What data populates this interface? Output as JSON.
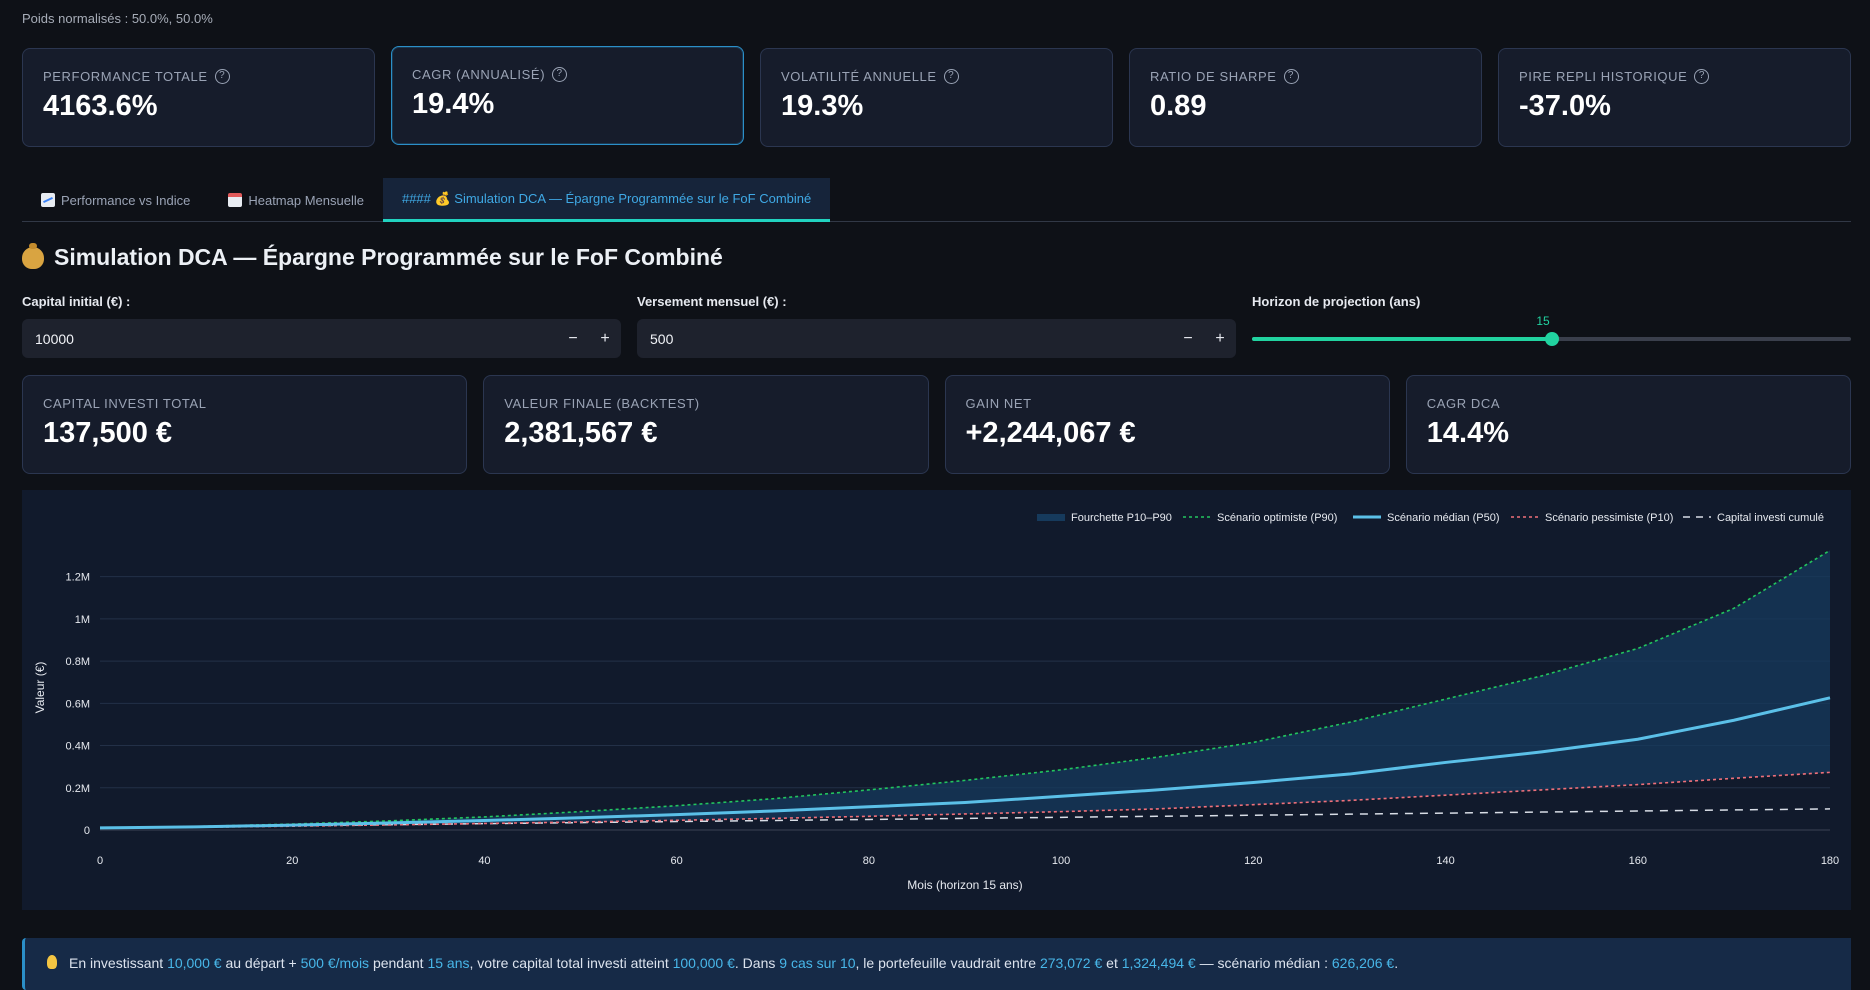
{
  "top_note": "Poids normalisés : 50.0%, 50.0%",
  "metrics": [
    {
      "label": "PERFORMANCE TOTALE",
      "value": "4163.6%"
    },
    {
      "label": "CAGR (ANNUALISÉ)",
      "value": "19.4%"
    },
    {
      "label": "VOLATILITÉ ANNUELLE",
      "value": "19.3%"
    },
    {
      "label": "RATIO DE SHARPE",
      "value": "0.89"
    },
    {
      "label": "PIRE REPLI HISTORIQUE",
      "value": "-37.0%"
    }
  ],
  "tabs": [
    {
      "label": "Performance vs Indice",
      "icon": "chart-increasing-icon"
    },
    {
      "label": "Heatmap Mensuelle",
      "icon": "calendar-icon"
    },
    {
      "label": "#### 💰 Simulation DCA — Épargne Programmée sur le FoF Combiné",
      "icon": "money-bag-icon"
    }
  ],
  "section": {
    "title": "Simulation DCA — Épargne Programmée sur le FoF Combiné"
  },
  "inputs": {
    "capital_label": "Capital initial (€) :",
    "capital_value": "10000",
    "monthly_label": "Versement mensuel (€) :",
    "monthly_value": "500",
    "minus": "−",
    "plus": "+"
  },
  "slider": {
    "label": "Horizon de projection (ans)",
    "value": "15",
    "min": 0,
    "max": 30
  },
  "dca_metrics": [
    {
      "label": "CAPITAL INVESTI TOTAL",
      "value": "137,500 €"
    },
    {
      "label": "VALEUR FINALE (BACKTEST)",
      "value": "2,381,567 €"
    },
    {
      "label": "GAIN NET",
      "value": "+2,244,067 €"
    },
    {
      "label": "CAGR DCA",
      "value": "14.4%"
    }
  ],
  "colors": {
    "accent": "#21d3a0",
    "p90": "#22c55e",
    "p50": "#5bc0e8",
    "p10": "#f0707a",
    "band": "#163a5c"
  },
  "chart_data": {
    "type": "area",
    "xlabel": "Mois (horizon 15 ans)",
    "ylabel": "Valeur (€)",
    "xlim": [
      0,
      180
    ],
    "ylim": [
      0,
      1350000
    ],
    "x_ticks": [
      0,
      20,
      40,
      60,
      80,
      100,
      120,
      140,
      160,
      180
    ],
    "y_ticks": [
      0,
      200000,
      400000,
      600000,
      800000,
      1000000,
      1200000
    ],
    "y_tick_labels": [
      "0",
      "0.2M",
      "0.4M",
      "0.6M",
      "0.8M",
      "1M",
      "1.2M"
    ],
    "grid": true,
    "legend_position": "top-right",
    "x": [
      0,
      10,
      20,
      30,
      40,
      50,
      60,
      70,
      80,
      90,
      100,
      110,
      120,
      130,
      140,
      150,
      160,
      170,
      180
    ],
    "series": [
      {
        "name": "Scénario optimiste (P90)",
        "values": [
          10000,
          17000,
          28000,
          43000,
          62000,
          87000,
          115000,
          148000,
          190000,
          235000,
          285000,
          345000,
          415000,
          510000,
          620000,
          730000,
          860000,
          1050000,
          1324494
        ]
      },
      {
        "name": "Scénario médian (P50)",
        "values": [
          10000,
          15000,
          23000,
          33000,
          45000,
          58000,
          73000,
          90000,
          110000,
          130000,
          160000,
          190000,
          225000,
          265000,
          320000,
          370000,
          430000,
          520000,
          626206
        ]
      },
      {
        "name": "Scénario pessimiste (P10)",
        "values": [
          10000,
          13000,
          18000,
          24000,
          31000,
          38000,
          46000,
          55000,
          65000,
          76000,
          87000,
          100000,
          120000,
          140000,
          165000,
          190000,
          215000,
          245000,
          273072
        ]
      },
      {
        "name": "Capital investi cumulé",
        "values": [
          10000,
          15000,
          20000,
          25000,
          30000,
          35000,
          40000,
          45000,
          50000,
          55000,
          60000,
          65000,
          70000,
          75000,
          80000,
          85000,
          90000,
          95000,
          100000
        ]
      }
    ],
    "band": {
      "name": "Fourchette P10–P90"
    }
  },
  "info": {
    "t1": "En investissant ",
    "initial": "10,000 €",
    "t2": " au départ + ",
    "monthly": "500 €/mois",
    "t3": " pendant ",
    "years": "15 ans",
    "t4": ", votre capital total investi atteint ",
    "total": "100,000 €",
    "t5": ". Dans ",
    "cases": "9 cas sur 10",
    "t6": ", le portefeuille vaudrait entre ",
    "low": "273,072 €",
    "t7": " et ",
    "high": "1,324,494 €",
    "t8": " — scénario médian : ",
    "median": "626,206 €",
    "t9": "."
  }
}
